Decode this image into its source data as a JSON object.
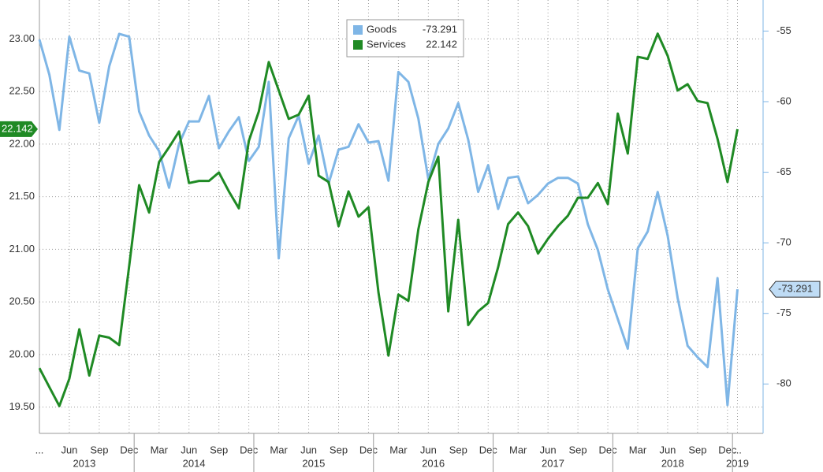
{
  "chart_data": {
    "type": "line",
    "x": [
      "2013-03",
      "2013-04",
      "2013-05",
      "2013-06",
      "2013-07",
      "2013-08",
      "2013-09",
      "2013-10",
      "2013-11",
      "2013-12",
      "2014-01",
      "2014-02",
      "2014-03",
      "2014-04",
      "2014-05",
      "2014-06",
      "2014-07",
      "2014-08",
      "2014-09",
      "2014-10",
      "2014-11",
      "2014-12",
      "2015-01",
      "2015-02",
      "2015-03",
      "2015-04",
      "2015-05",
      "2015-06",
      "2015-07",
      "2015-08",
      "2015-09",
      "2015-10",
      "2015-11",
      "2015-12",
      "2016-01",
      "2016-02",
      "2016-03",
      "2016-04",
      "2016-05",
      "2016-06",
      "2016-07",
      "2016-08",
      "2016-09",
      "2016-10",
      "2016-11",
      "2016-12",
      "2017-01",
      "2017-02",
      "2017-03",
      "2017-04",
      "2017-05",
      "2017-06",
      "2017-07",
      "2017-08",
      "2017-09",
      "2017-10",
      "2017-11",
      "2017-12",
      "2018-01",
      "2018-02",
      "2018-03",
      "2018-04",
      "2018-05",
      "2018-06",
      "2018-07",
      "2018-08",
      "2018-09",
      "2018-10",
      "2018-11",
      "2018-12",
      "2019-01"
    ],
    "series": [
      {
        "name": "Goods",
        "color": "#7fb6e6",
        "axis": "y2",
        "values": [
          -55.6,
          -58.1,
          -62.0,
          -55.4,
          -57.8,
          -58.0,
          -61.5,
          -57.5,
          -55.2,
          -55.4,
          -60.7,
          -62.4,
          -63.5,
          -66.1,
          -63.0,
          -61.4,
          -61.4,
          -59.6,
          -63.3,
          -62.1,
          -61.1,
          -64.2,
          -63.2,
          -58.6,
          -71.1,
          -62.6,
          -61.0,
          -64.4,
          -62.4,
          -65.8,
          -63.4,
          -63.2,
          -61.6,
          -62.9,
          -62.8,
          -65.6,
          -57.9,
          -58.6,
          -61.2,
          -65.5,
          -63.0,
          -61.9,
          -60.1,
          -62.7,
          -66.4,
          -64.5,
          -67.6,
          -65.4,
          -65.3,
          -67.2,
          -66.6,
          -65.8,
          -65.4,
          -65.4,
          -65.8,
          -68.7,
          -70.5,
          -73.3,
          -75.4,
          -77.5,
          -70.4,
          -69.2,
          -66.4,
          -69.5,
          -73.9,
          -77.3,
          -78.1,
          -78.8,
          -72.5,
          -81.5,
          -73.291
        ]
      },
      {
        "name": "Services",
        "color": "#1f8a24",
        "values": [
          19.87,
          19.69,
          19.51,
          19.77,
          20.24,
          19.8,
          20.18,
          20.16,
          20.09,
          20.84,
          21.61,
          21.35,
          21.83,
          21.97,
          22.12,
          21.63,
          21.65,
          21.65,
          21.73,
          21.55,
          21.39,
          22.03,
          22.31,
          22.78,
          22.51,
          22.24,
          22.28,
          22.46,
          21.7,
          21.64,
          21.22,
          21.55,
          21.31,
          21.4,
          20.59,
          19.99,
          20.57,
          20.51,
          21.19,
          21.64,
          21.88,
          20.41,
          21.28,
          20.28,
          20.41,
          20.49,
          20.83,
          21.24,
          21.35,
          21.22,
          20.96,
          21.1,
          21.22,
          21.32,
          21.49,
          21.49,
          21.63,
          21.43,
          22.29,
          21.91,
          22.83,
          22.81,
          23.05,
          22.84,
          22.51,
          22.57,
          22.41,
          22.39,
          22.05,
          21.64,
          22.142
        ]
      }
    ],
    "xticks": [
      {
        "value": "2013-03",
        "label": "..."
      },
      {
        "value": "2013-06",
        "label": "Jun"
      },
      {
        "value": "2013-09",
        "label": "Sep"
      },
      {
        "value": "2013-12",
        "label": "Dec"
      },
      {
        "value": "2014-03",
        "label": "Mar"
      },
      {
        "value": "2014-06",
        "label": "Jun"
      },
      {
        "value": "2014-09",
        "label": "Sep"
      },
      {
        "value": "2014-12",
        "label": "Dec"
      },
      {
        "value": "2015-03",
        "label": "Mar"
      },
      {
        "value": "2015-06",
        "label": "Jun"
      },
      {
        "value": "2015-09",
        "label": "Sep"
      },
      {
        "value": "2015-12",
        "label": "Dec"
      },
      {
        "value": "2016-03",
        "label": "Mar"
      },
      {
        "value": "2016-06",
        "label": "Jun"
      },
      {
        "value": "2016-09",
        "label": "Sep"
      },
      {
        "value": "2016-12",
        "label": "Dec"
      },
      {
        "value": "2017-03",
        "label": "Mar"
      },
      {
        "value": "2017-06",
        "label": "Jun"
      },
      {
        "value": "2017-09",
        "label": "Sep"
      },
      {
        "value": "2017-12",
        "label": "Dec"
      },
      {
        "value": "2018-03",
        "label": "Mar"
      },
      {
        "value": "2018-06",
        "label": "Jun"
      },
      {
        "value": "2018-09",
        "label": "Sep"
      },
      {
        "value": "2018-12",
        "label": "Dec"
      },
      {
        "value": "2019-01",
        "label": "..."
      }
    ],
    "years": [
      "2013",
      "2014",
      "2015",
      "2016",
      "2017",
      "2018",
      "2019"
    ],
    "ylim": [
      19.25,
      23.37
    ],
    "yticks": [
      {
        "value": 19.5,
        "label": "19.50"
      },
      {
        "value": 20,
        "label": "20.00"
      },
      {
        "value": 20.5,
        "label": "20.50"
      },
      {
        "value": 21,
        "label": "21.00"
      },
      {
        "value": 21.5,
        "label": "21.50"
      },
      {
        "value": 22,
        "label": "22.00"
      },
      {
        "value": 22.5,
        "label": "22.50"
      },
      {
        "value": 23,
        "label": "23.00"
      }
    ],
    "y2lim": [
      -83.5,
      -52.8
    ],
    "y2ticks": [
      -80,
      -75,
      -70,
      -65,
      -60,
      -55
    ],
    "grid": true,
    "legend": "top"
  }
}
